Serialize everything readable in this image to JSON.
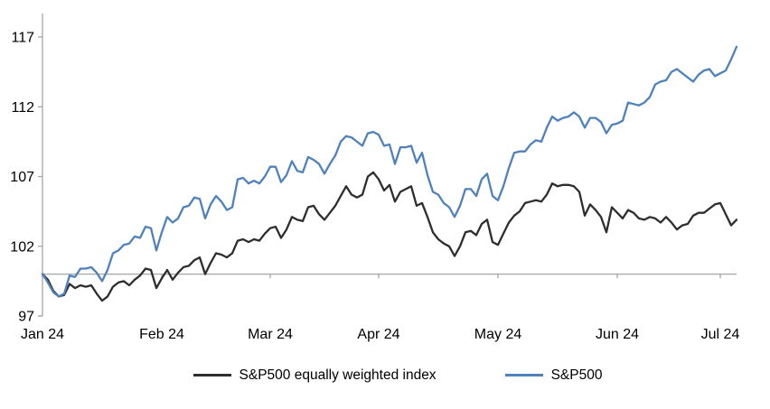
{
  "chart_data": {
    "type": "line",
    "title": "",
    "grid": false,
    "axis_color": "#a6a6a6",
    "text_color": "#000000",
    "y_axis": {
      "min": 97,
      "max": 117,
      "ticks": [
        97,
        102,
        107,
        112,
        117
      ],
      "baseline": 100
    },
    "x_axis": {
      "tick_labels": [
        "Jan 24",
        "Feb 24",
        "Mar 24",
        "Apr 24",
        "May 24",
        "Jun 24",
        "Jul 24"
      ],
      "tick_indices": [
        0,
        22,
        42,
        62,
        84,
        106,
        125
      ]
    },
    "legend": {
      "position": "bottom"
    },
    "x_dates": [
      "2023-12-29",
      "2024-01-02",
      "2024-01-03",
      "2024-01-04",
      "2024-01-05",
      "2024-01-08",
      "2024-01-09",
      "2024-01-10",
      "2024-01-11",
      "2024-01-12",
      "2024-01-16",
      "2024-01-17",
      "2024-01-18",
      "2024-01-19",
      "2024-01-22",
      "2024-01-23",
      "2024-01-24",
      "2024-01-25",
      "2024-01-26",
      "2024-01-29",
      "2024-01-30",
      "2024-01-31",
      "2024-02-01",
      "2024-02-02",
      "2024-02-05",
      "2024-02-06",
      "2024-02-07",
      "2024-02-08",
      "2024-02-09",
      "2024-02-12",
      "2024-02-13",
      "2024-02-14",
      "2024-02-15",
      "2024-02-16",
      "2024-02-20",
      "2024-02-21",
      "2024-02-22",
      "2024-02-23",
      "2024-02-26",
      "2024-02-27",
      "2024-02-28",
      "2024-02-29",
      "2024-03-01",
      "2024-03-04",
      "2024-03-05",
      "2024-03-06",
      "2024-03-07",
      "2024-03-08",
      "2024-03-11",
      "2024-03-12",
      "2024-03-13",
      "2024-03-14",
      "2024-03-15",
      "2024-03-18",
      "2024-03-19",
      "2024-03-20",
      "2024-03-21",
      "2024-03-22",
      "2024-03-25",
      "2024-03-26",
      "2024-03-27",
      "2024-03-28",
      "2024-04-01",
      "2024-04-02",
      "2024-04-03",
      "2024-04-04",
      "2024-04-05",
      "2024-04-08",
      "2024-04-09",
      "2024-04-10",
      "2024-04-11",
      "2024-04-12",
      "2024-04-15",
      "2024-04-16",
      "2024-04-17",
      "2024-04-18",
      "2024-04-19",
      "2024-04-22",
      "2024-04-23",
      "2024-04-24",
      "2024-04-25",
      "2024-04-26",
      "2024-04-29",
      "2024-04-30",
      "2024-05-01",
      "2024-05-02",
      "2024-05-03",
      "2024-05-06",
      "2024-05-07",
      "2024-05-08",
      "2024-05-09",
      "2024-05-10",
      "2024-05-13",
      "2024-05-14",
      "2024-05-15",
      "2024-05-16",
      "2024-05-17",
      "2024-05-20",
      "2024-05-21",
      "2024-05-22",
      "2024-05-23",
      "2024-05-24",
      "2024-05-28",
      "2024-05-29",
      "2024-05-30",
      "2024-05-31",
      "2024-06-03",
      "2024-06-04",
      "2024-06-05",
      "2024-06-06",
      "2024-06-07",
      "2024-06-10",
      "2024-06-11",
      "2024-06-12",
      "2024-06-13",
      "2024-06-14",
      "2024-06-17",
      "2024-06-18",
      "2024-06-20",
      "2024-06-21",
      "2024-06-24",
      "2024-06-25",
      "2024-06-26",
      "2024-06-27",
      "2024-06-28",
      "2024-07-01",
      "2024-07-02",
      "2024-07-03",
      "2024-07-05"
    ],
    "series": [
      {
        "name": "S&P500 equally weighted index",
        "color": "#2e2e2e",
        "values": [
          100.0,
          99.6,
          98.8,
          98.4,
          98.5,
          99.3,
          99.0,
          99.2,
          99.1,
          99.2,
          98.6,
          98.1,
          98.4,
          99.1,
          99.4,
          99.5,
          99.2,
          99.6,
          99.9,
          100.4,
          100.3,
          99.0,
          99.7,
          100.3,
          99.6,
          100.1,
          100.5,
          100.6,
          101.0,
          101.2,
          100.0,
          100.8,
          101.5,
          101.4,
          101.2,
          101.5,
          102.4,
          102.5,
          102.3,
          102.5,
          102.4,
          102.9,
          103.3,
          103.4,
          102.6,
          103.2,
          104.1,
          103.9,
          103.8,
          104.8,
          104.9,
          104.3,
          103.9,
          104.4,
          104.9,
          105.6,
          106.3,
          105.7,
          105.5,
          105.7,
          107.0,
          107.3,
          106.8,
          106.0,
          106.4,
          105.2,
          105.9,
          106.1,
          106.3,
          104.9,
          105.1,
          104.1,
          103.0,
          102.5,
          102.2,
          102.0,
          101.3,
          102.0,
          103.0,
          103.1,
          102.8,
          103.6,
          103.9,
          102.3,
          102.1,
          102.9,
          103.7,
          104.2,
          104.5,
          105.1,
          105.2,
          105.3,
          105.2,
          105.7,
          106.5,
          106.3,
          106.4,
          106.4,
          106.3,
          105.9,
          104.2,
          105.0,
          104.6,
          104.1,
          103.0,
          104.8,
          104.4,
          104.0,
          104.6,
          104.4,
          104.0,
          103.9,
          104.1,
          104.0,
          103.7,
          104.1,
          103.7,
          103.2,
          103.5,
          103.6,
          104.2,
          104.4,
          104.4,
          104.7,
          105.0,
          105.1,
          104.3,
          103.5,
          103.9
        ]
      },
      {
        "name": "S&P500",
        "color": "#4f81bd",
        "values": [
          100.0,
          99.4,
          98.7,
          98.4,
          98.6,
          99.9,
          99.8,
          100.4,
          100.4,
          100.5,
          100.1,
          99.5,
          100.3,
          101.5,
          101.7,
          102.1,
          102.2,
          102.7,
          102.6,
          103.4,
          103.3,
          101.7,
          103.0,
          104.1,
          103.7,
          104.0,
          104.8,
          104.9,
          105.5,
          105.4,
          104.0,
          105.0,
          105.6,
          105.2,
          104.6,
          104.8,
          106.8,
          106.9,
          106.5,
          106.7,
          106.5,
          107.0,
          107.7,
          107.7,
          106.6,
          107.1,
          108.1,
          107.4,
          107.3,
          108.4,
          108.2,
          107.9,
          107.2,
          107.9,
          108.5,
          109.5,
          109.9,
          109.8,
          109.5,
          109.2,
          110.1,
          110.2,
          110.0,
          109.2,
          109.3,
          107.9,
          109.1,
          109.1,
          109.2,
          108.0,
          108.7,
          107.1,
          105.9,
          105.7,
          105.1,
          104.8,
          104.1,
          104.9,
          106.1,
          106.1,
          105.6,
          106.8,
          107.2,
          105.6,
          105.3,
          106.3,
          107.6,
          108.7,
          108.8,
          108.8,
          109.3,
          109.6,
          109.5,
          110.5,
          111.3,
          111.0,
          111.2,
          111.3,
          111.6,
          111.3,
          110.5,
          111.2,
          111.2,
          110.9,
          110.1,
          110.7,
          110.8,
          111.0,
          112.3,
          112.2,
          112.1,
          112.3,
          112.7,
          113.6,
          113.8,
          113.9,
          114.5,
          114.7,
          114.4,
          114.1,
          113.8,
          114.3,
          114.6,
          114.7,
          114.2,
          114.4,
          114.6,
          115.4,
          116.3
        ]
      }
    ]
  }
}
